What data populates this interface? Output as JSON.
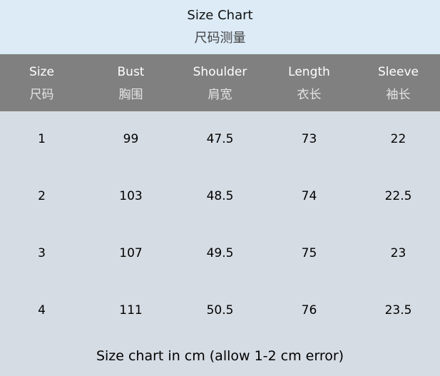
{
  "title": {
    "en": "Size Chart",
    "zh": "尺码测量"
  },
  "columns": [
    {
      "en": "Size",
      "zh": "尺码"
    },
    {
      "en": "Bust",
      "zh": "胸围"
    },
    {
      "en": "Shoulder",
      "zh": "肩宽"
    },
    {
      "en": "Length",
      "zh": "衣长"
    },
    {
      "en": "Sleeve",
      "zh": "袖长"
    }
  ],
  "rows": [
    [
      "1",
      "99",
      "47.5",
      "73",
      "22"
    ],
    [
      "2",
      "103",
      "48.5",
      "74",
      "22.5"
    ],
    [
      "3",
      "107",
      "49.5",
      "75",
      "23"
    ],
    [
      "4",
      "111",
      "50.5",
      "76",
      "23.5"
    ]
  ],
  "footer": "Size chart in cm (allow 1-2 cm error)",
  "colors": {
    "title_bg": "#dcebf6",
    "header_bg": "#808080",
    "body_bg": "#d6dce4"
  }
}
